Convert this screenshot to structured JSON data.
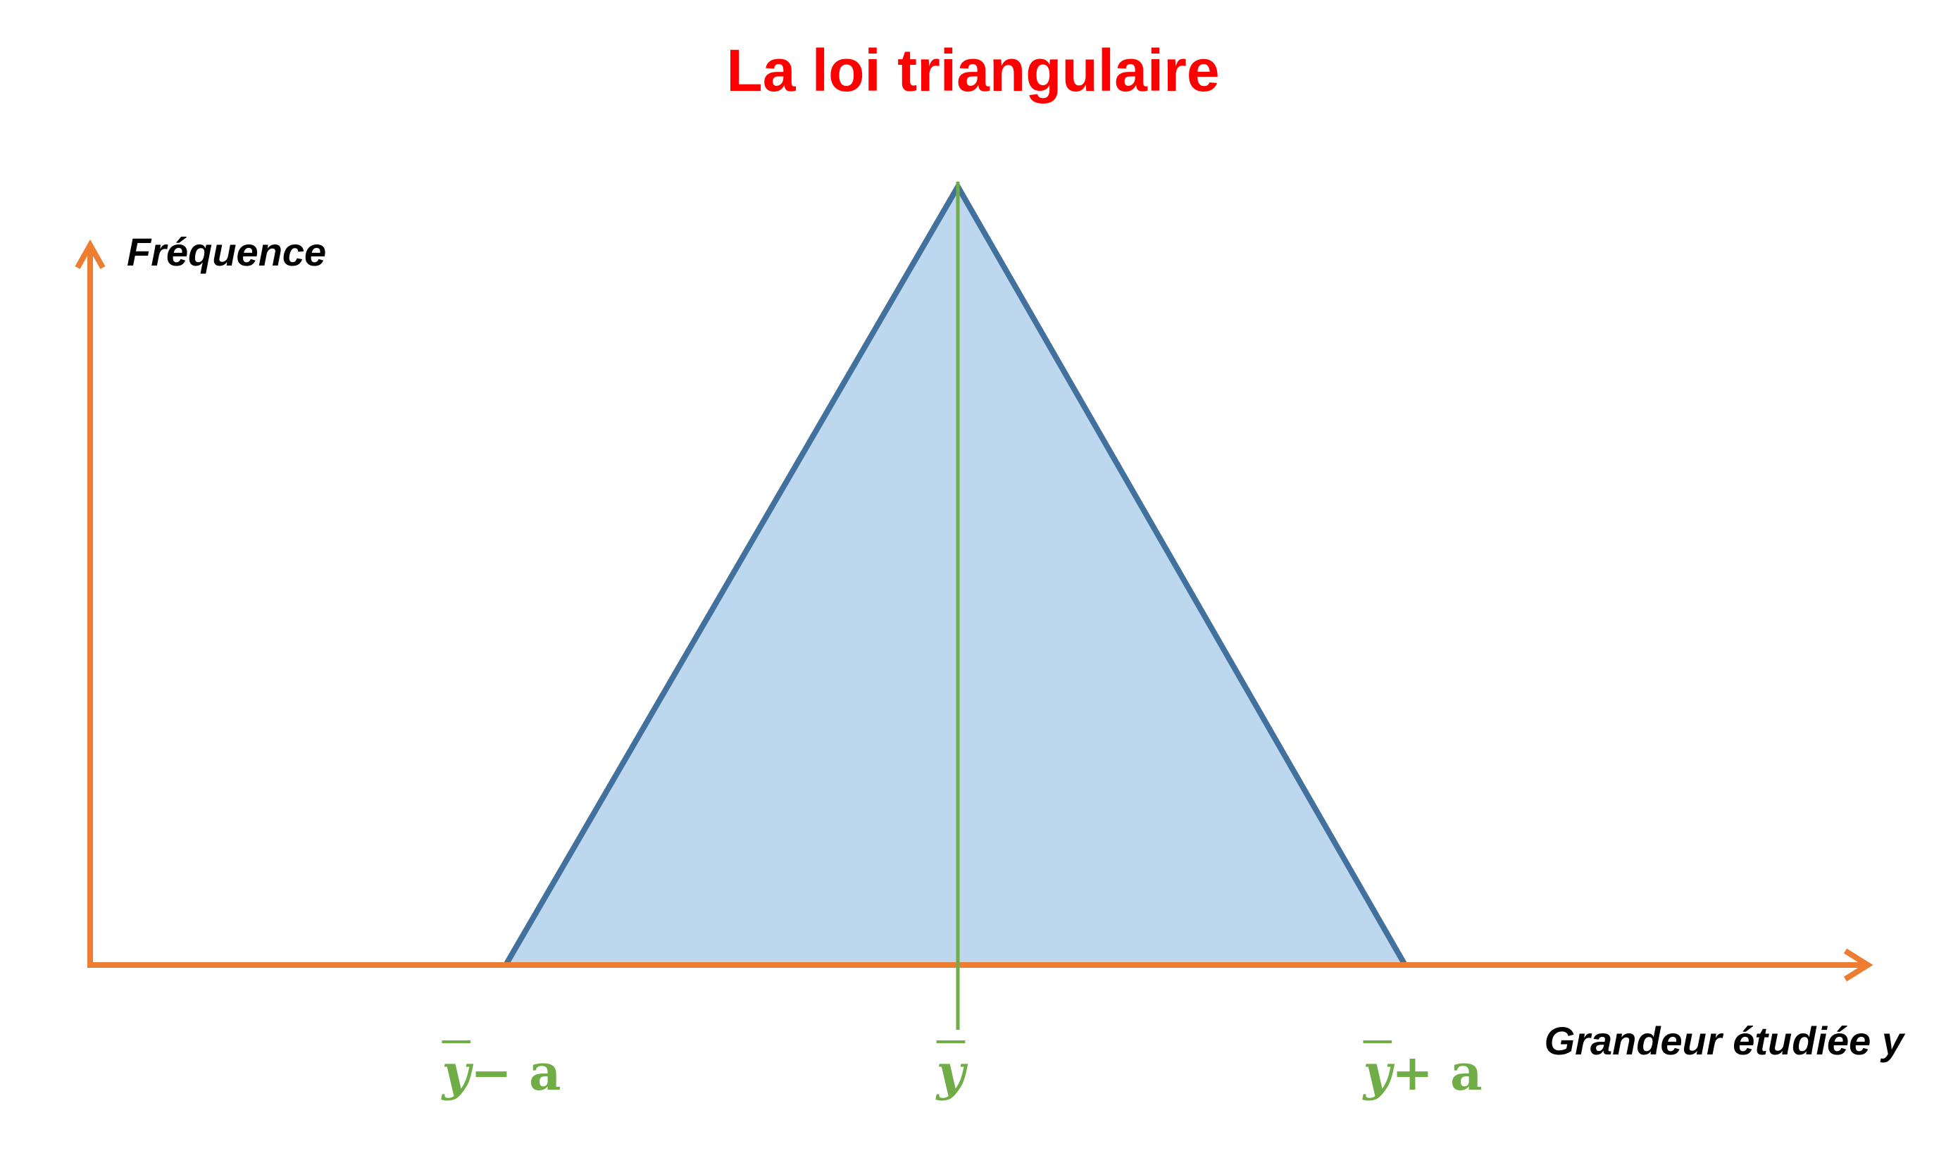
{
  "title": "La loi triangulaire",
  "y_axis_label": "Fréquence",
  "x_axis_label": "Grandeur étudiée y",
  "ticks": {
    "left": {
      "var": "y",
      "op": " − a"
    },
    "center": {
      "var": "y",
      "op": ""
    },
    "right": {
      "var": "y",
      "op": " + a"
    }
  },
  "colors": {
    "title": "#ff0000",
    "axes": "#ed7d31",
    "triangle_fill": "#bdd7ee",
    "triangle_stroke": "#41719c",
    "mean_line": "#70ad47",
    "tick_labels": "#70ad47"
  }
}
